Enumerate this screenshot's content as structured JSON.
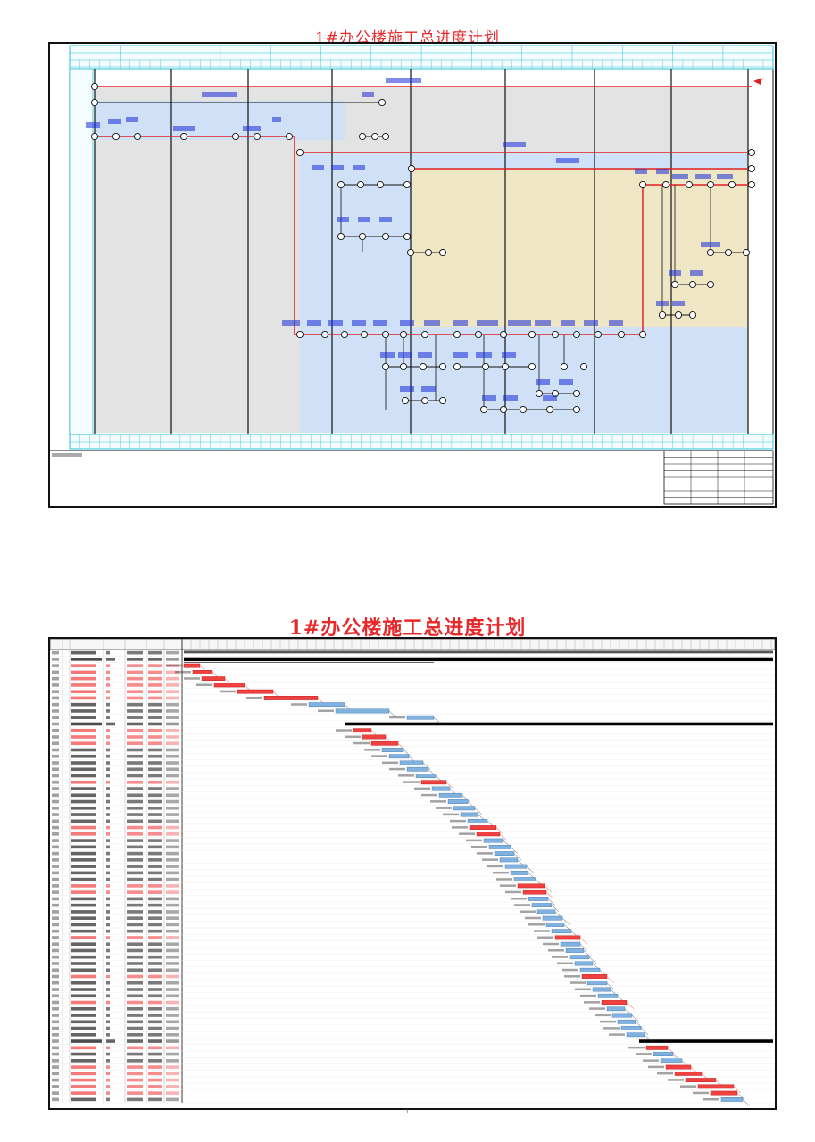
{
  "page": {
    "title_top": "1#办公楼施工总进度计划",
    "title_bottom": "1#办公楼施工总进度计划",
    "page_number": "1"
  },
  "colors": {
    "title_red": "#e8282a",
    "critical_red": "#e02020",
    "network_blue": "#1a2bd8",
    "zone_gray": "#e3e3e3",
    "zone_blue": "#cfe0f7",
    "zone_tan": "#efe6c6",
    "header_cyan": "#2ec4d8",
    "gantt_bar_blue": "#7fb2e0",
    "gantt_bar_red": "#f04040",
    "summary_black": "#000000"
  },
  "network": {
    "column_dividers": 8,
    "zones": [
      "gray",
      "blue",
      "tan",
      "blue"
    ]
  },
  "gantt": {
    "row_count": 70,
    "groups": 3
  }
}
